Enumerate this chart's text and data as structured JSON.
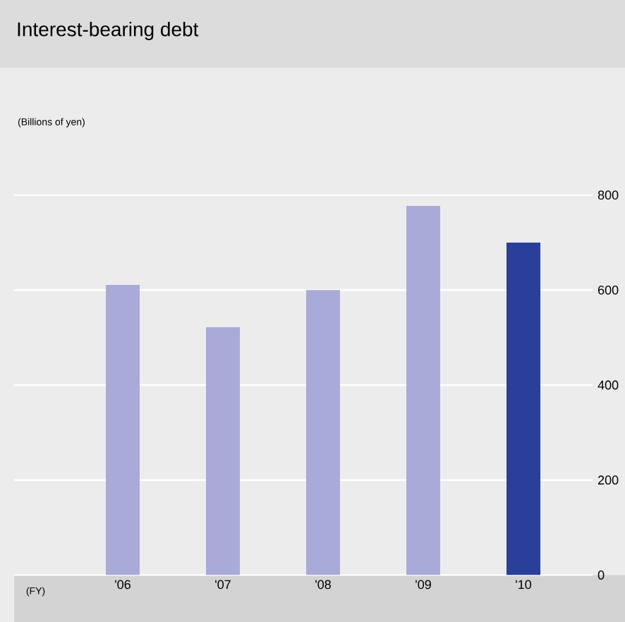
{
  "chart_data": {
    "type": "bar",
    "title": "Interest-bearing debt",
    "subtitle": "(Billions of yen)",
    "xlabel": "(FY)",
    "categories": [
      "'06",
      "'07",
      "'08",
      "'09",
      "'10"
    ],
    "values": [
      611,
      522,
      600,
      777,
      700
    ],
    "colors": [
      "#aaaad8",
      "#aaaad8",
      "#aaaad8",
      "#aaaad8",
      "#2a3f9a"
    ],
    "ylim": [
      0,
      800
    ],
    "yticks": [
      0,
      200,
      400,
      600,
      800
    ],
    "grid": "y"
  }
}
